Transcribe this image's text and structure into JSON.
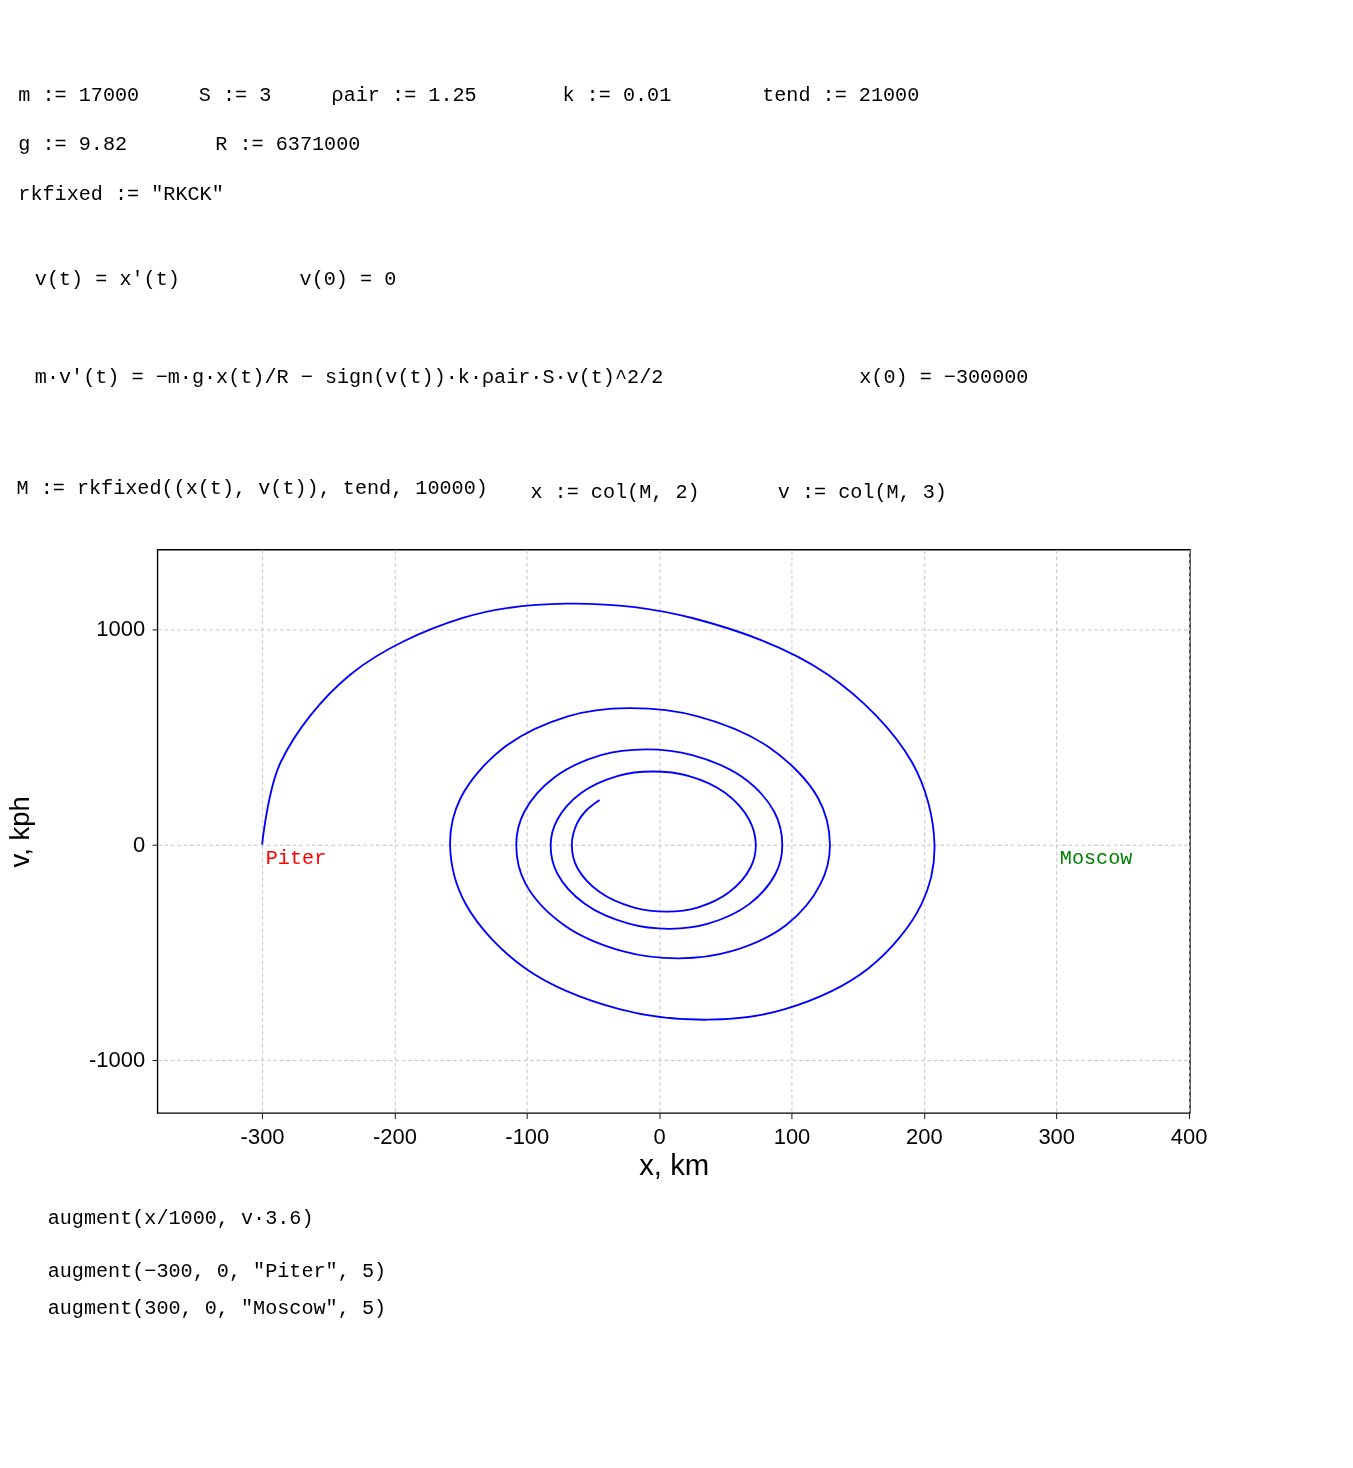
{
  "chart_data": {
    "type": "line",
    "xlabel": "x, km",
    "ylabel": "v, kph",
    "xlim": [
      -379,
      401
    ],
    "ylim": [
      -1247,
      1370
    ],
    "xticks": [
      -300,
      -200,
      -100,
      0,
      100,
      200,
      300,
      400
    ],
    "yticks": [
      -1000,
      0,
      1000
    ],
    "grid": true,
    "series": [
      {
        "color": "#0000ff",
        "x": [
          -300,
          -286,
          -233,
          -149,
          -70,
          25,
          127,
          191,
          208,
          198,
          158,
          95,
          37,
          -30,
          -101,
          -146,
          -158,
          -150,
          -118,
          -69,
          -23,
          29,
          84,
          120,
          129,
          122,
          96,
          54,
          15,
          -27,
          -72,
          -101,
          -108,
          -102,
          -79,
          -44,
          -10,
          25,
          63,
          87,
          93,
          88,
          68,
          37,
          8,
          -23,
          -56,
          -77,
          -82,
          -77,
          -59,
          -31,
          -5,
          22,
          50,
          68,
          73,
          69,
          53,
          29,
          6,
          -19,
          -45,
          -62,
          -66,
          -62,
          -55,
          -45
        ],
        "values": [
          0,
          383,
          792,
          1052,
          1120,
          1053,
          792,
          383,
          0,
          -278,
          -575,
          -764,
          -813,
          -764,
          -575,
          -278,
          0,
          217,
          448,
          596,
          634,
          596,
          448,
          217,
          0,
          -181,
          -373,
          -496,
          -528,
          -496,
          -373,
          -181,
          0,
          152,
          313,
          416,
          443,
          416,
          313,
          152,
          0,
          -134,
          -276,
          -367,
          -391,
          -367,
          -276,
          -134,
          0,
          116,
          240,
          320,
          340,
          320,
          240,
          116,
          0,
          -106,
          -220,
          -292,
          -311,
          -292,
          -220,
          -106,
          0,
          100,
          160,
          208
        ]
      }
    ],
    "annotations": [
      "m := 17000",
      "S := 3",
      "ρair := 1.25",
      "k := 0.01",
      "tend := 21000",
      "g := 9.82",
      "R := 6371000",
      "rkfixed := \"RKCK\"",
      "v(t) = x'(t)",
      "v(0) = 0",
      "m·v'(t) = −m·g·x(t)/R − sign(v(t))·k·ρair·S·v(t)^2/2",
      "x(0) = −300000",
      "M := rkfixed((x(t), v(t)), tend, 10000)",
      "x := col(M, 2)",
      "v := col(M, 3)",
      "augment(x/1000, v·3.6)",
      "augment(−300, 0, \"Piter\", 5)",
      "augment(300, 0, \"Moscow\", 5)",
      "Moscow",
      {
        "text": "Piter",
        "x": -300,
        "y": 0
      }
    ]
  }
}
